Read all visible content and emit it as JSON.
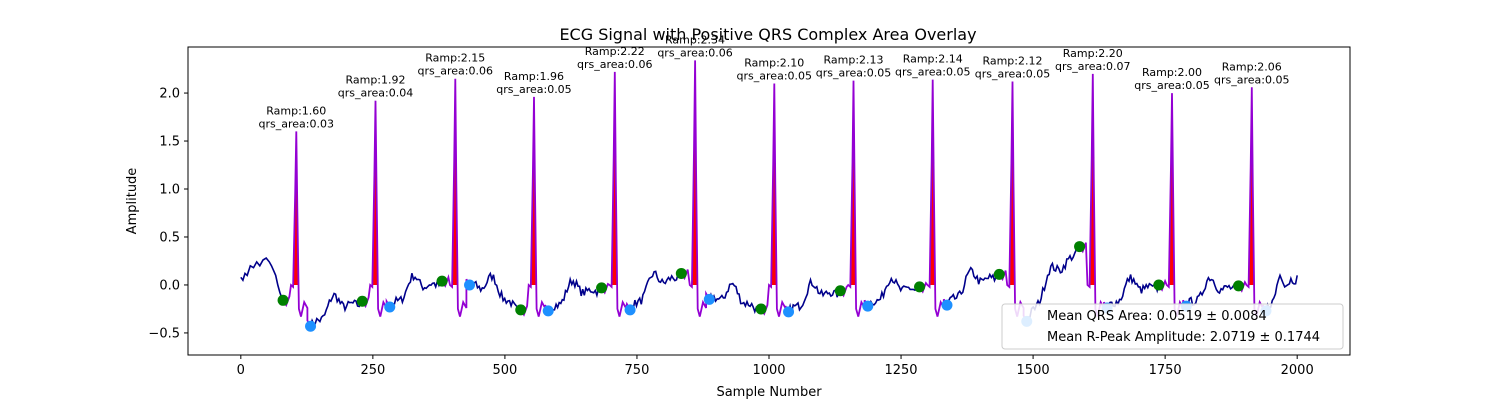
{
  "chart_data": {
    "type": "line",
    "title": "ECG Signal with Positive QRS Complex Area Overlay",
    "xlabel": "Sample Number",
    "ylabel": "Amplitude",
    "xlim": [
      -100,
      2100
    ],
    "ylim": [
      -0.73,
      2.48
    ],
    "x_ticks": [
      0,
      250,
      500,
      750,
      1000,
      1250,
      1500,
      1750,
      2000
    ],
    "x_tick_labels": [
      "0",
      "250",
      "500",
      "750",
      "1000",
      "1250",
      "1500",
      "1750",
      "2000"
    ],
    "y_ticks": [
      -0.5,
      0.0,
      0.5,
      1.0,
      1.5,
      2.0
    ],
    "y_tick_labels": [
      "−0.5",
      "0.0",
      "0.5",
      "1.0",
      "1.5",
      "2.0"
    ],
    "grid": false,
    "colors": {
      "signal": "#00008b",
      "qrs_segment": "#9400d3",
      "qrs_fill": "#ff0000",
      "onset_marker": "#008000",
      "offset_marker": "#1e90ff"
    },
    "r_peaks": [
      {
        "x": 105,
        "amplitude": 1.6,
        "area": 0.03,
        "onset_x": 80,
        "onset_y": -0.16,
        "offset_x": 132,
        "offset_y": -0.43,
        "ramp_label": "Ramp:1.60",
        "area_label": "qrs_area:0.03"
      },
      {
        "x": 255,
        "amplitude": 1.92,
        "area": 0.04,
        "onset_x": 230,
        "onset_y": -0.17,
        "offset_x": 282,
        "offset_y": -0.23,
        "ramp_label": "Ramp:1.92",
        "area_label": "qrs_area:0.04"
      },
      {
        "x": 406,
        "amplitude": 2.15,
        "area": 0.06,
        "onset_x": 381,
        "onset_y": 0.04,
        "offset_x": 433,
        "offset_y": 0.0,
        "ramp_label": "Ramp:2.15",
        "area_label": "qrs_area:0.06"
      },
      {
        "x": 555,
        "amplitude": 1.96,
        "area": 0.05,
        "onset_x": 530,
        "onset_y": -0.26,
        "offset_x": 582,
        "offset_y": -0.27,
        "ramp_label": "Ramp:1.96",
        "area_label": "qrs_area:0.05"
      },
      {
        "x": 708,
        "amplitude": 2.22,
        "area": 0.06,
        "onset_x": 683,
        "onset_y": -0.03,
        "offset_x": 737,
        "offset_y": -0.26,
        "ramp_label": "Ramp:2.22",
        "area_label": "qrs_area:0.06"
      },
      {
        "x": 860,
        "amplitude": 2.34,
        "area": 0.06,
        "onset_x": 834,
        "onset_y": 0.12,
        "offset_x": 887,
        "offset_y": -0.15,
        "ramp_label": "Ramp:2.34",
        "area_label": "qrs_area:0.06"
      },
      {
        "x": 1010,
        "amplitude": 2.1,
        "area": 0.05,
        "onset_x": 985,
        "onset_y": -0.25,
        "offset_x": 1037,
        "offset_y": -0.28,
        "ramp_label": "Ramp:2.10",
        "area_label": "qrs_area:0.05"
      },
      {
        "x": 1160,
        "amplitude": 2.13,
        "area": 0.05,
        "onset_x": 1135,
        "onset_y": -0.06,
        "offset_x": 1187,
        "offset_y": -0.22,
        "ramp_label": "Ramp:2.13",
        "area_label": "qrs_area:0.05"
      },
      {
        "x": 1310,
        "amplitude": 2.14,
        "area": 0.05,
        "onset_x": 1285,
        "onset_y": -0.02,
        "offset_x": 1337,
        "offset_y": -0.21,
        "ramp_label": "Ramp:2.14",
        "area_label": "qrs_area:0.05"
      },
      {
        "x": 1461,
        "amplitude": 2.12,
        "area": 0.05,
        "onset_x": 1436,
        "onset_y": 0.11,
        "offset_x": 1488,
        "offset_y": -0.38,
        "ramp_label": "Ramp:2.12",
        "area_label": "qrs_area:0.05"
      },
      {
        "x": 1613,
        "amplitude": 2.2,
        "area": 0.07,
        "onset_x": 1588,
        "onset_y": 0.4,
        "offset_x": 1640,
        "offset_y": -0.24,
        "ramp_label": "Ramp:2.20",
        "area_label": "qrs_area:0.07"
      },
      {
        "x": 1763,
        "amplitude": 2.0,
        "area": 0.05,
        "onset_x": 1738,
        "onset_y": 0.0,
        "offset_x": 1790,
        "offset_y": -0.22,
        "ramp_label": "Ramp:2.00",
        "area_label": "qrs_area:0.05"
      },
      {
        "x": 1914,
        "amplitude": 2.06,
        "area": 0.05,
        "onset_x": 1889,
        "onset_y": -0.01,
        "offset_x": 1941,
        "offset_y": -0.27,
        "ramp_label": "Ramp:2.06",
        "area_label": "qrs_area:0.05"
      }
    ],
    "baseline_points": [
      [
        0,
        0.08
      ],
      [
        4,
        0.05
      ],
      [
        8,
        0.12
      ],
      [
        12,
        0.1
      ],
      [
        18,
        0.2
      ],
      [
        24,
        0.18
      ],
      [
        30,
        0.24
      ],
      [
        36,
        0.2
      ],
      [
        42,
        0.26
      ],
      [
        48,
        0.28
      ],
      [
        54,
        0.24
      ],
      [
        58,
        0.2
      ],
      [
        62,
        0.15
      ],
      [
        66,
        0.1
      ],
      [
        70,
        0.0
      ],
      [
        74,
        -0.08
      ],
      [
        78,
        -0.14
      ],
      [
        80,
        -0.16
      ]
    ],
    "ecg_wave": [
      [
        112,
        -0.45
      ],
      [
        118,
        -0.55
      ],
      [
        122,
        -0.6
      ],
      [
        128,
        -0.5
      ],
      [
        132,
        -0.43
      ],
      [
        140,
        -0.35
      ],
      [
        150,
        -0.25
      ],
      [
        158,
        -0.28
      ],
      [
        165,
        -0.2
      ],
      [
        172,
        -0.24
      ],
      [
        180,
        -0.15
      ],
      [
        188,
        -0.2
      ],
      [
        196,
        -0.12
      ],
      [
        204,
        -0.17
      ],
      [
        212,
        -0.1
      ],
      [
        220,
        -0.14
      ],
      [
        230,
        -0.17
      ]
    ],
    "legend": {
      "position": "lower-right",
      "entries": [
        "Mean QRS Area: 0.0519 ± 0.0084",
        "Mean R-Peak Amplitude: 2.0719 ± 0.1744"
      ]
    }
  }
}
